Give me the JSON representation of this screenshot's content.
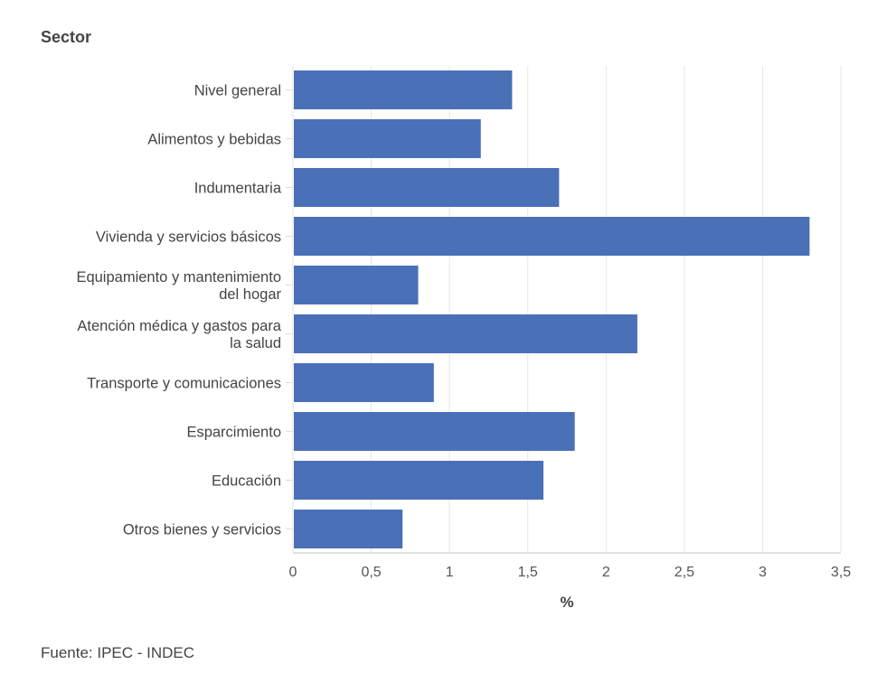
{
  "chart_data": {
    "type": "bar",
    "orientation": "horizontal",
    "ylabel": "Sector",
    "xlabel": "%",
    "xlim": [
      0,
      3.5
    ],
    "xticks": [
      0,
      0.5,
      1,
      1.5,
      2,
      2.5,
      3,
      3.5
    ],
    "xtick_labels": [
      "0",
      "0,5",
      "1",
      "1,5",
      "2",
      "2,5",
      "3",
      "3,5"
    ],
    "grid": true,
    "categories": [
      [
        "Nivel general"
      ],
      [
        "Alimentos y bebidas"
      ],
      [
        "Indumentaria"
      ],
      [
        "Vivienda y servicios básicos"
      ],
      [
        "Equipamiento y mantenimiento",
        "del hogar"
      ],
      [
        "Atención médica y gastos para",
        "la salud"
      ],
      [
        "Transporte y comunicaciones"
      ],
      [
        "Esparcimiento"
      ],
      [
        "Educación"
      ],
      [
        "Otros bienes y servicios"
      ]
    ],
    "values": [
      1.4,
      1.2,
      1.7,
      3.3,
      0.8,
      2.2,
      0.9,
      1.8,
      1.6,
      0.7
    ],
    "bar_color": "#4a70b8"
  },
  "source": "Fuente: IPEC - INDEC"
}
